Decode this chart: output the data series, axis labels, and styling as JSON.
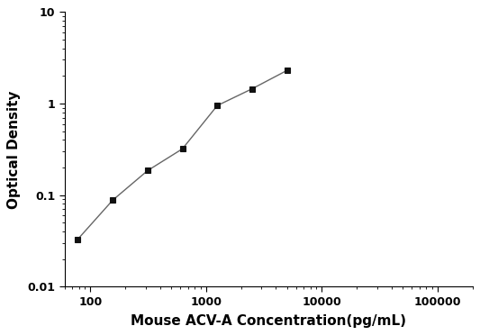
{
  "x": [
    78.125,
    156.25,
    312.5,
    625,
    1250,
    2500,
    5000
  ],
  "y": [
    0.033,
    0.088,
    0.185,
    0.32,
    0.95,
    1.45,
    2.3
  ],
  "xlim": [
    60,
    200000
  ],
  "ylim": [
    0.01,
    10
  ],
  "xlabel": "Mouse ACV-A Concentration(pg/mL)",
  "ylabel": "Optical Density",
  "line_color": "#666666",
  "marker_color": "#111111",
  "marker": "s",
  "marker_size": 5,
  "background_color": "#ffffff",
  "spine_color": "#000000",
  "tick_label_fontsize": 9,
  "axis_label_fontsize": 11
}
